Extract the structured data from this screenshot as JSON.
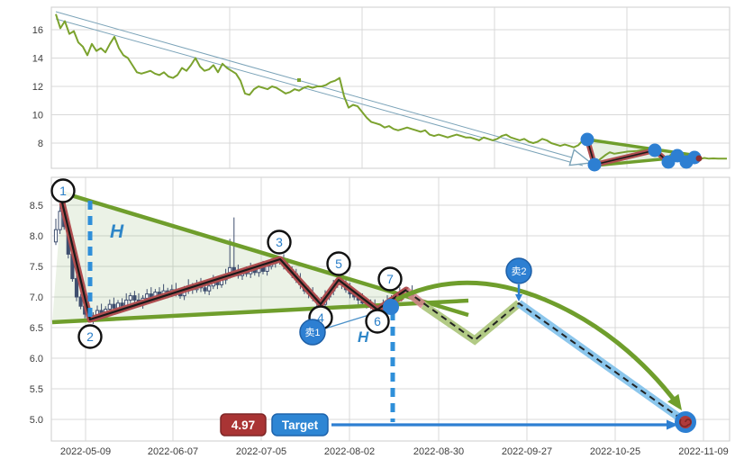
{
  "colors": {
    "price_line": "#7ba22e",
    "trend_green": "#6f9e2c",
    "wave_red": "#b04e50",
    "wave_core": "#1a1a1a",
    "candle": "#3e4e6e",
    "annotation_blue": "#2d7fd2",
    "dashed_blue": "#2f8fd9",
    "badge_red": "#a93434",
    "badge_blue": "#2e86d4",
    "highlight_pink": "#d4858f",
    "highlight_green": "#aac478",
    "highlight_blue": "#7fc0ea",
    "grid": "#d9d9d9",
    "triangle_fill": "rgba(110,160,80,0.14)"
  },
  "chart_data": [
    {
      "type": "line",
      "title": "",
      "xlabel": "",
      "ylabel": "",
      "grid": true,
      "legend": false,
      "yticks": [
        "16",
        "14",
        "12",
        "10",
        "8"
      ],
      "ylim": [
        6.2,
        17.6
      ],
      "values": [
        17.1,
        16.1,
        16.6,
        15.7,
        15.9,
        15.1,
        14.8,
        14.2,
        15.0,
        14.5,
        14.7,
        14.4,
        15.0,
        15.5,
        14.7,
        14.2,
        14.0,
        13.5,
        13.0,
        12.9,
        13.0,
        13.1,
        12.9,
        12.8,
        13.0,
        12.7,
        12.6,
        12.8,
        13.3,
        13.1,
        13.5,
        14.0,
        13.4,
        13.1,
        13.2,
        13.5,
        13.0,
        13.6,
        13.3,
        13.1,
        12.9,
        12.4,
        11.5,
        11.4,
        11.8,
        12.0,
        11.9,
        11.8,
        12.0,
        11.9,
        11.7,
        11.5,
        11.6,
        11.8,
        11.7,
        11.9,
        12.0,
        11.9,
        12.0,
        12.0,
        12.1,
        12.3,
        12.4,
        12.6,
        11.3,
        10.5,
        10.7,
        10.6,
        10.2,
        9.8,
        9.5,
        9.4,
        9.3,
        9.1,
        9.2,
        9.0,
        8.9,
        9.0,
        9.1,
        9.0,
        8.9,
        8.8,
        8.9,
        8.6,
        8.5,
        8.6,
        8.5,
        8.4,
        8.5,
        8.6,
        8.5,
        8.4,
        8.4,
        8.3,
        8.2,
        8.4,
        8.3,
        8.2,
        8.3,
        8.5,
        8.6,
        8.4,
        8.3,
        8.2,
        8.3,
        8.1,
        8.0,
        8.1,
        8.3,
        8.2,
        8.0,
        7.9,
        7.8,
        7.9,
        7.8,
        7.7,
        7.85,
        8.2,
        8.55,
        7.1,
        6.63,
        6.9,
        7.15,
        7.35,
        7.25,
        7.3,
        7.35,
        7.4,
        7.42,
        7.45,
        7.5,
        7.52,
        7.58,
        7.62,
        7.2,
        6.9,
        7.05,
        7.28,
        7.05,
        6.8,
        6.95,
        7.1,
        6.9,
        6.88,
        6.95,
        6.9,
        6.92,
        6.9,
        6.9,
        6.9
      ]
    },
    {
      "type": "candlestick",
      "title": "",
      "grid": true,
      "yticks": [
        "8.5",
        "8.0",
        "7.5",
        "7.0",
        "6.5",
        "6.0",
        "5.5",
        "5.0"
      ],
      "ylim": [
        4.6,
        9.0
      ],
      "xticklabels": [
        "2022-05-09",
        "2022-06-07",
        "2022-07-05",
        "2022-08-02",
        "2022-08-30",
        "2022-09-27",
        "2022-10-25",
        "2022-11-09"
      ],
      "open_first": 7.9,
      "closes": [
        8.1,
        8.4,
        8.15,
        7.7,
        7.3,
        7.0,
        6.85,
        6.72,
        6.63,
        6.7,
        6.78,
        6.72,
        6.8,
        6.88,
        6.82,
        6.9,
        6.85,
        6.95,
        7.02,
        6.95,
        6.88,
        6.98,
        7.05,
        7.0,
        7.08,
        7.02,
        7.1,
        7.05,
        7.12,
        7.08,
        7.02,
        7.1,
        7.18,
        7.12,
        7.2,
        7.15,
        7.1,
        7.18,
        7.25,
        7.2,
        7.28,
        7.35,
        7.48,
        7.42,
        7.35,
        7.42,
        7.38,
        7.45,
        7.4,
        7.48,
        7.42,
        7.5,
        7.55,
        7.58,
        7.62,
        7.52,
        7.45,
        7.38,
        7.28,
        7.2,
        7.1,
        7.05,
        6.98,
        6.92,
        6.88,
        7.0,
        7.1,
        7.2,
        7.28,
        7.2,
        7.12,
        7.05,
        7.0,
        6.95,
        6.9,
        6.88,
        6.85,
        6.82,
        6.8,
        6.88,
        6.92,
        6.98,
        7.02,
        7.05,
        7.05,
        7.08,
        7.02
      ],
      "special_highs": {
        "0": 8.28,
        "1": 8.52,
        "42": 7.95,
        "43": 8.3
      },
      "annotations": {
        "pivots": [
          {
            "label": "1",
            "price": 8.55
          },
          {
            "label": "2",
            "price": 6.63
          },
          {
            "label": "3",
            "price": 7.62
          },
          {
            "label": "4",
            "price": 6.88
          },
          {
            "label": "5",
            "price": 7.28
          },
          {
            "label": "6",
            "price": 6.8
          },
          {
            "label": "7",
            "price": 7.12
          }
        ],
        "sell1": {
          "label": "卖1"
        },
        "sell2": {
          "label": "卖2"
        },
        "h_primary": "H",
        "h_secondary": "H",
        "projection_low": 6.3,
        "target": {
          "price_label": "4.97",
          "button_label": "Target",
          "price": 4.97
        }
      }
    }
  ]
}
